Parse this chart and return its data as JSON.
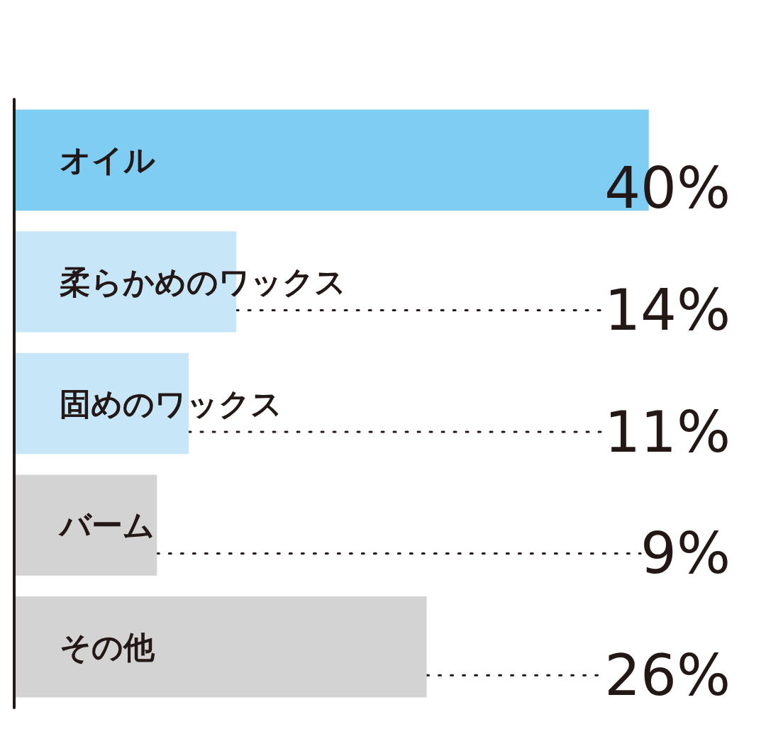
{
  "chart_data": {
    "type": "bar",
    "orientation": "horizontal",
    "categories": [
      "オイル",
      "柔らかめのワックス",
      "固めのワックス",
      "バーム",
      "その他"
    ],
    "values": [
      40,
      14,
      11,
      9,
      26
    ],
    "value_labels": [
      "40%",
      "14%",
      "11%",
      "9%",
      "26%"
    ],
    "colors": [
      "#7fcdf2",
      "#c7e7f8",
      "#c7e7f8",
      "#d3d3d3",
      "#d3d3d3"
    ]
  }
}
